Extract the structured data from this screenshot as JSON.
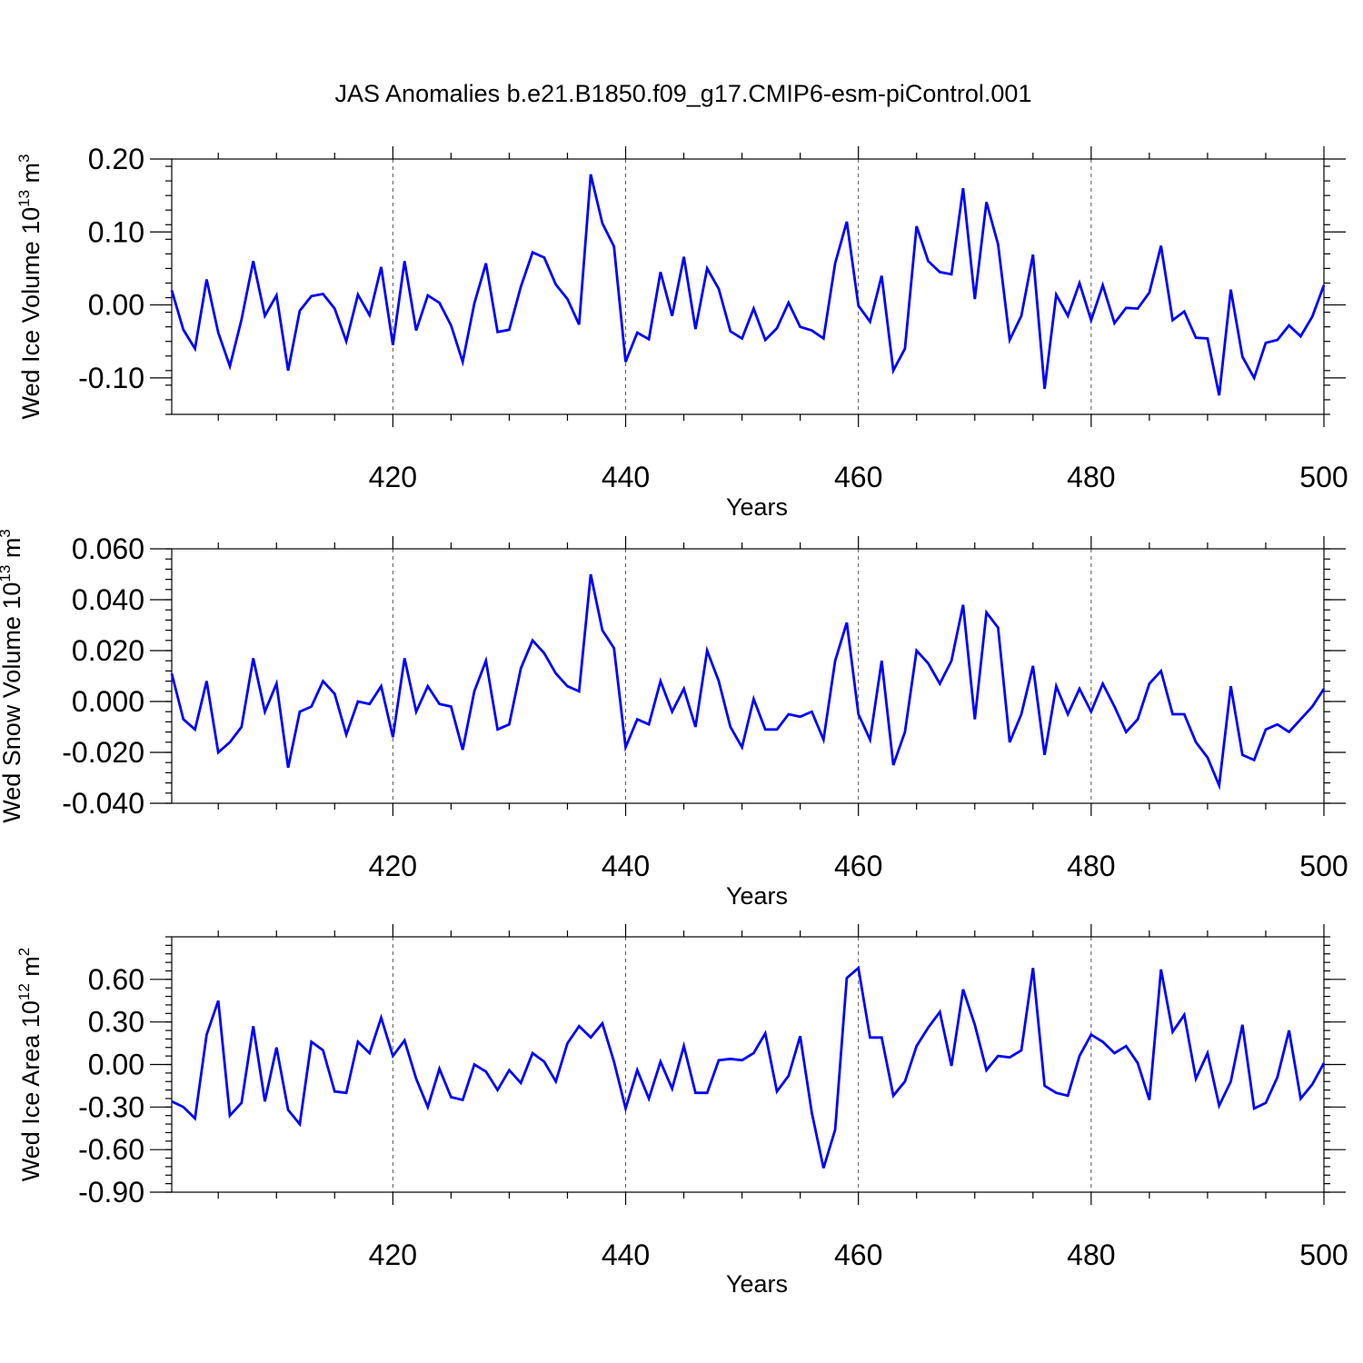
{
  "title": "JAS Anomalies b.e21.B1850.f09_g17.CMIP6-esm-piControl.001",
  "chart_data": [
    {
      "type": "line",
      "ylabel_prefix": "Wed Ice Volume 10",
      "ylabel_exp": "13",
      "ylabel_unit": "m",
      "ylabel_unit_exp": "3",
      "xlabel": "Years",
      "xlim": [
        401,
        500
      ],
      "ylim": [
        -0.15,
        0.2
      ],
      "xticks": [
        420,
        440,
        460,
        480,
        500
      ],
      "xtick_labels": [
        "420",
        "440",
        "460",
        "480",
        "500"
      ],
      "yticks": [
        0.2,
        0.1,
        0.0,
        -0.1
      ],
      "ytick_labels": [
        "0.20",
        "0.10",
        "0.00",
        "-0.10"
      ],
      "grid": "vertical dashed",
      "x_start": 401,
      "values": [
        0.02,
        -0.034,
        -0.06,
        0.035,
        -0.038,
        -0.084,
        -0.02,
        0.06,
        -0.015,
        0.013,
        -0.09,
        -0.008,
        0.012,
        0.015,
        -0.005,
        -0.05,
        0.014,
        -0.014,
        0.052,
        -0.055,
        0.06,
        -0.035,
        0.013,
        0.003,
        -0.028,
        -0.078,
        0.002,
        0.057,
        -0.037,
        -0.034,
        0.025,
        0.072,
        0.065,
        0.028,
        0.008,
        -0.027,
        0.179,
        0.112,
        0.08,
        -0.078,
        -0.038,
        -0.047,
        0.045,
        -0.015,
        0.066,
        -0.033,
        0.05,
        0.022,
        -0.036,
        -0.046,
        -0.005,
        -0.048,
        -0.032,
        0.003,
        -0.03,
        -0.035,
        -0.046,
        0.057,
        0.114,
        -0.001,
        -0.023,
        0.04,
        -0.09,
        -0.06,
        0.108,
        0.06,
        0.045,
        0.042,
        0.16,
        0.008,
        0.141,
        0.083,
        -0.048,
        -0.015,
        0.069,
        -0.115,
        0.014,
        -0.015,
        0.03,
        -0.021,
        0.027,
        -0.025,
        -0.004,
        -0.005,
        0.017,
        0.081,
        -0.021,
        -0.009,
        -0.045,
        -0.046,
        -0.124,
        0.021,
        -0.071,
        -0.1,
        -0.052,
        -0.048,
        -0.028,
        -0.043,
        -0.016,
        0.027
      ]
    },
    {
      "type": "line",
      "ylabel_prefix": "Wed Snow Volume 10",
      "ylabel_exp": "13",
      "ylabel_unit": "m",
      "ylabel_unit_exp": "3",
      "xlabel": "Years",
      "xlim": [
        401,
        500
      ],
      "ylim": [
        -0.04,
        0.06
      ],
      "xticks": [
        420,
        440,
        460,
        480,
        500
      ],
      "xtick_labels": [
        "420",
        "440",
        "460",
        "480",
        "500"
      ],
      "yticks": [
        0.06,
        0.04,
        0.02,
        0.0,
        -0.02,
        -0.04
      ],
      "ytick_labels": [
        "0.060",
        "0.040",
        "0.020",
        "0.000",
        "-0.020",
        "-0.040"
      ],
      "grid": "vertical dashed",
      "x_start": 401,
      "values": [
        0.011,
        -0.007,
        -0.011,
        0.008,
        -0.02,
        -0.016,
        -0.01,
        0.017,
        -0.004,
        0.007,
        -0.026,
        -0.004,
        -0.002,
        0.008,
        0.003,
        -0.013,
        0.0,
        -0.001,
        0.006,
        -0.014,
        0.017,
        -0.004,
        0.006,
        -0.001,
        -0.002,
        -0.019,
        0.004,
        0.016,
        -0.011,
        -0.009,
        0.013,
        0.024,
        0.019,
        0.011,
        0.006,
        0.004,
        0.05,
        0.028,
        0.021,
        -0.018,
        -0.007,
        -0.009,
        0.008,
        -0.004,
        0.005,
        -0.01,
        0.02,
        0.008,
        -0.01,
        -0.018,
        0.001,
        -0.011,
        -0.011,
        -0.005,
        -0.006,
        -0.004,
        -0.015,
        0.016,
        0.031,
        -0.005,
        -0.015,
        0.016,
        -0.025,
        -0.012,
        0.02,
        0.015,
        0.007,
        0.016,
        0.038,
        -0.007,
        0.035,
        0.029,
        -0.016,
        -0.005,
        0.014,
        -0.021,
        0.006,
        -0.005,
        0.005,
        -0.004,
        0.007,
        -0.002,
        -0.012,
        -0.007,
        0.007,
        0.012,
        -0.005,
        -0.005,
        -0.016,
        -0.022,
        -0.033,
        0.006,
        -0.021,
        -0.023,
        -0.011,
        -0.009,
        -0.012,
        -0.007,
        -0.002,
        0.005
      ]
    },
    {
      "type": "line",
      "ylabel_prefix": "Wed Ice Area 10",
      "ylabel_exp": "12",
      "ylabel_unit": "m",
      "ylabel_unit_exp": "2",
      "xlabel": "Years",
      "xlim": [
        401,
        500
      ],
      "ylim": [
        -0.9,
        0.9
      ],
      "xticks": [
        420,
        440,
        460,
        480,
        500
      ],
      "xtick_labels": [
        "420",
        "440",
        "460",
        "480",
        "500"
      ],
      "yticks": [
        0.6,
        0.3,
        0.0,
        -0.3,
        -0.6,
        -0.9
      ],
      "ytick_labels": [
        "0.60",
        "0.30",
        "0.00",
        "-0.30",
        "-0.60",
        "-0.90"
      ],
      "grid": "vertical dashed",
      "x_start": 401,
      "values": [
        -0.26,
        -0.3,
        -0.38,
        0.21,
        0.45,
        -0.36,
        -0.27,
        0.27,
        -0.26,
        0.12,
        -0.32,
        -0.42,
        0.16,
        0.1,
        -0.19,
        -0.2,
        0.16,
        0.08,
        0.33,
        0.06,
        0.17,
        -0.1,
        -0.3,
        -0.03,
        -0.23,
        -0.25,
        -0.0,
        -0.05,
        -0.18,
        -0.04,
        -0.13,
        0.08,
        0.02,
        -0.12,
        0.15,
        0.27,
        0.19,
        0.29,
        0.02,
        -0.31,
        -0.04,
        -0.24,
        0.02,
        -0.17,
        0.13,
        -0.2,
        -0.2,
        0.03,
        0.04,
        0.03,
        0.08,
        0.22,
        -0.19,
        -0.08,
        0.2,
        -0.34,
        -0.73,
        -0.46,
        0.61,
        0.68,
        0.19,
        0.19,
        -0.22,
        -0.12,
        0.13,
        0.26,
        0.37,
        -0.01,
        0.53,
        0.28,
        -0.04,
        0.06,
        0.05,
        0.1,
        0.68,
        -0.15,
        -0.2,
        -0.22,
        0.06,
        0.21,
        0.16,
        0.08,
        0.13,
        0.01,
        -0.25,
        0.67,
        0.23,
        0.35,
        -0.1,
        0.08,
        -0.29,
        -0.12,
        0.28,
        -0.31,
        -0.27,
        -0.09,
        0.24,
        -0.24,
        -0.14,
        0.01
      ]
    }
  ]
}
